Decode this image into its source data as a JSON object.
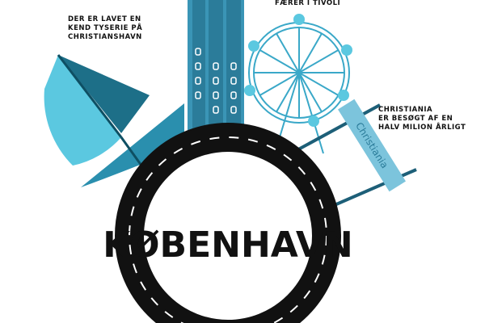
{
  "title": "KØBENHAVN",
  "notes": [
    {
      "lines": [
        "DER ER LAVET EN",
        "KEND TYSERIE PÅ",
        "CHRISTIANSHAVN"
      ]
    },
    {
      "lines": [
        "FÆRER I TIVOLI"
      ]
    },
    {
      "lines": [
        "CHRISTIANIA",
        "ER BESØGT AF EN",
        "HALV MILION ÅRLIGT"
      ]
    }
  ],
  "sign": "Christiania"
}
